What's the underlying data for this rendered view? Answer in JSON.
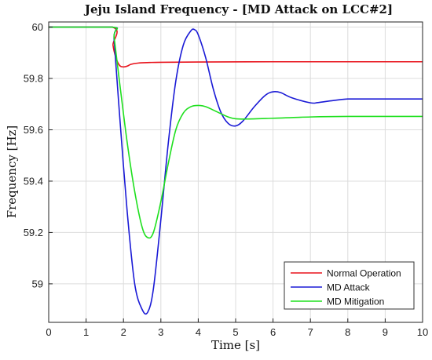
{
  "chart_data": {
    "type": "line",
    "title": "Jeju Island Frequency - [MD Attack on LCC#2]",
    "xlabel": "Time [s]",
    "ylabel": "Frequency [Hz]",
    "xlim": [
      0,
      10
    ],
    "ylim": [
      58.85,
      60.02
    ],
    "xticks": [
      "0",
      "1",
      "2",
      "3",
      "4",
      "5",
      "6",
      "7",
      "8",
      "9",
      "10"
    ],
    "yticks": [
      "59",
      "59.2",
      "59.4",
      "59.6",
      "59.8",
      "60"
    ],
    "grid": true,
    "legend_position": "bottom-right",
    "series": [
      {
        "name": "Normal Operation",
        "color": "#e8121b",
        "x": [
          0,
          1.7,
          1.72,
          1.8,
          1.9,
          2.0,
          2.1,
          2.2,
          2.4,
          2.7,
          3.0,
          4.0,
          6.0,
          8.0,
          10.0
        ],
        "y": [
          60.0,
          60.0,
          59.93,
          59.88,
          59.85,
          59.845,
          59.848,
          59.855,
          59.86,
          59.862,
          59.863,
          59.864,
          59.865,
          59.865,
          59.865
        ]
      },
      {
        "name": "MD Attack",
        "color": "#1a1ad6",
        "x": [
          0,
          1.7,
          1.75,
          1.9,
          2.1,
          2.3,
          2.5,
          2.65,
          2.8,
          3.0,
          3.2,
          3.4,
          3.6,
          3.8,
          3.9,
          4.0,
          4.2,
          4.4,
          4.6,
          4.8,
          5.0,
          5.2,
          5.5,
          5.8,
          6.0,
          6.2,
          6.5,
          7.0,
          7.2,
          7.5,
          8.0,
          8.5,
          9.0,
          10.0
        ],
        "y": [
          60.0,
          60.0,
          59.95,
          59.65,
          59.28,
          59.0,
          58.9,
          58.89,
          58.98,
          59.25,
          59.55,
          59.79,
          59.93,
          59.985,
          59.99,
          59.97,
          59.88,
          59.76,
          59.67,
          59.625,
          59.615,
          59.635,
          59.69,
          59.735,
          59.748,
          59.745,
          59.725,
          59.705,
          59.706,
          59.712,
          59.72,
          59.72,
          59.72,
          59.72
        ]
      },
      {
        "name": "MD Mitigation",
        "color": "#1fe01f",
        "x": [
          0,
          1.7,
          1.75,
          1.9,
          2.1,
          2.3,
          2.5,
          2.65,
          2.8,
          3.0,
          3.2,
          3.4,
          3.6,
          3.8,
          4.0,
          4.2,
          4.5,
          4.8,
          5.0,
          5.3,
          6.0,
          7.0,
          8.0,
          10.0
        ],
        "y": [
          60.0,
          60.0,
          59.96,
          59.78,
          59.55,
          59.36,
          59.22,
          59.18,
          59.2,
          59.32,
          59.47,
          59.6,
          59.665,
          59.69,
          59.695,
          59.69,
          59.67,
          59.65,
          59.643,
          59.642,
          59.645,
          59.65,
          59.652,
          59.652
        ]
      }
    ]
  }
}
